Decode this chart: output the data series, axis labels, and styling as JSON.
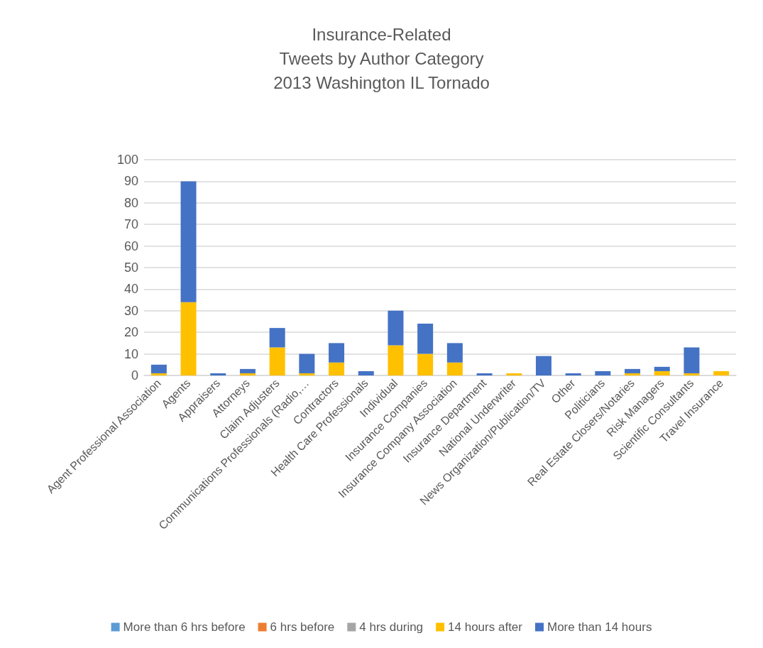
{
  "chart_data": {
    "type": "bar",
    "title": "Insurance-Related\nTweets by Author Category\n2013 Washington IL Tornado",
    "categories": [
      "Agent Professional Association",
      "Agents",
      "Appraisers",
      "Attorneys",
      "Claim Adjusters",
      "Communications Professionals (Radio,…",
      "Contractors",
      "Health Care Professionals",
      "Individual",
      "Insurance Companies",
      "Insurance Company Association",
      "Insurance Department",
      "National Underwriter",
      "News Organization/Publication/TV",
      "Other",
      "Politicians",
      "Real Estate Closers/Notaries",
      "Risk Managers",
      "Scientific Consultants",
      "Travel Insurance"
    ],
    "stacked": true,
    "series": [
      {
        "name": "More than 6 hrs before",
        "color": "#5b9bd5",
        "values": [
          0,
          0,
          0,
          0,
          0,
          0,
          0,
          0,
          0,
          0,
          0,
          0,
          0,
          0,
          0,
          0,
          0,
          0,
          0,
          0
        ]
      },
      {
        "name": "6 hrs before",
        "color": "#ed7d31",
        "values": [
          0,
          0,
          0,
          0,
          0,
          0,
          0,
          0,
          0,
          0,
          0,
          0,
          0,
          0,
          0,
          0,
          0,
          0,
          0,
          0
        ]
      },
      {
        "name": "4 hrs during",
        "color": "#a5a5a5",
        "values": [
          0,
          0,
          0,
          0,
          0,
          0,
          0,
          0,
          0,
          0,
          0,
          0,
          0,
          0,
          0,
          0,
          0,
          0,
          0,
          0
        ]
      },
      {
        "name": "14 hours after",
        "color": "#ffc000",
        "values": [
          1,
          34,
          0,
          1,
          13,
          1,
          6,
          0,
          14,
          10,
          6,
          0,
          1,
          0,
          0,
          0,
          1,
          2,
          1,
          2
        ]
      },
      {
        "name": "More than 14 hours",
        "color": "#4472c4",
        "values": [
          4,
          56,
          1,
          2,
          9,
          9,
          9,
          2,
          16,
          14,
          9,
          1,
          0,
          9,
          1,
          2,
          2,
          2,
          12,
          0
        ]
      }
    ],
    "ylim": [
      0,
      100
    ],
    "yticks": [
      0,
      10,
      20,
      30,
      40,
      50,
      60,
      70,
      80,
      90,
      100
    ],
    "grid": "y",
    "legend": "bottom"
  }
}
